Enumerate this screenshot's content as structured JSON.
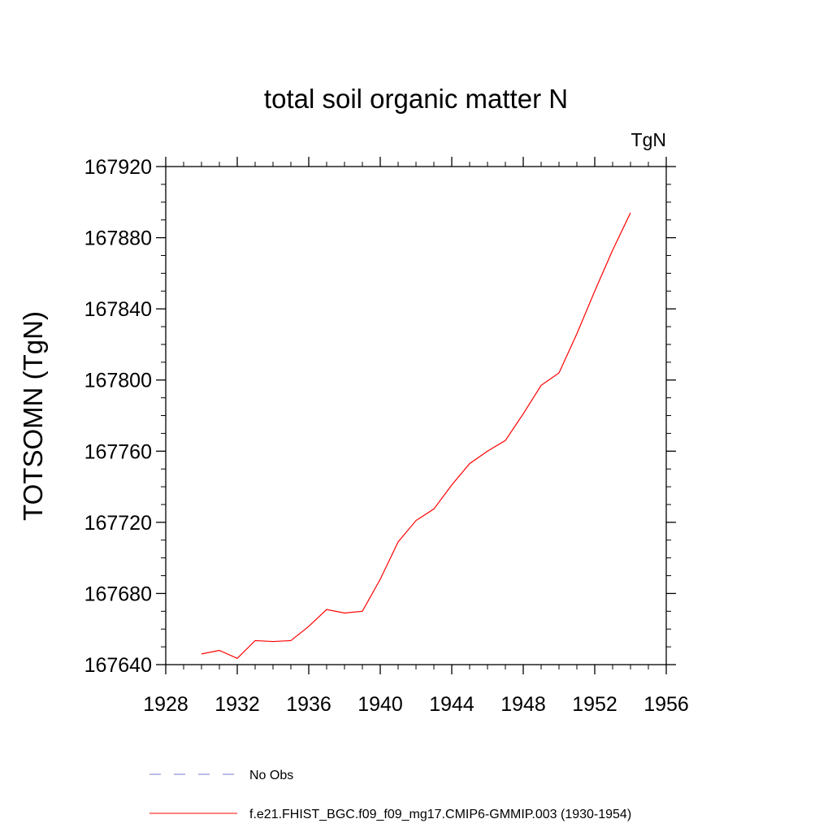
{
  "chart_data": {
    "type": "line",
    "title": "total soil organic matter N",
    "units_label": "TgN",
    "ylabel": "TOTSOMN  (TgN)",
    "xlabel": "",
    "xlim": [
      1928,
      1956
    ],
    "ylim": [
      167640,
      167920
    ],
    "x_ticks": [
      1928,
      1932,
      1936,
      1940,
      1944,
      1948,
      1952,
      1956
    ],
    "y_ticks": [
      167640,
      167680,
      167720,
      167760,
      167800,
      167840,
      167880,
      167920
    ],
    "x_tick_labels": [
      "1928",
      "1932",
      "1936",
      "1940",
      "1944",
      "1948",
      "1952",
      "1956"
    ],
    "y_tick_labels": [
      "167640",
      "167680",
      "167720",
      "167760",
      "167800",
      "167840",
      "167880",
      "167920"
    ],
    "grid": false,
    "legend_position": "bottom",
    "series": [
      {
        "name": "f.e21.FHIST_BGC.f09_f09_mg17.CMIP6-GMMIP.003 (1930-1954)",
        "color": "#ff0000",
        "style": "solid",
        "x": [
          1930,
          1931,
          1932,
          1933,
          1934,
          1935,
          1936,
          1937,
          1938,
          1939,
          1940,
          1941,
          1942,
          1943,
          1944,
          1945,
          1946,
          1947,
          1948,
          1949,
          1950,
          1951,
          1952,
          1953,
          1954
        ],
        "values": [
          167646,
          167648,
          167643.5,
          167653.5,
          167653,
          167653.5,
          167661.5,
          167671,
          167669,
          167670,
          167688,
          167709,
          167721,
          167727.5,
          167741,
          167753,
          167760,
          167766,
          167781,
          167797,
          167804,
          167826,
          167850,
          167873,
          167894
        ]
      },
      {
        "name": "No Obs",
        "color": "#7777cc",
        "style": "dashed",
        "x": [],
        "values": []
      }
    ]
  }
}
